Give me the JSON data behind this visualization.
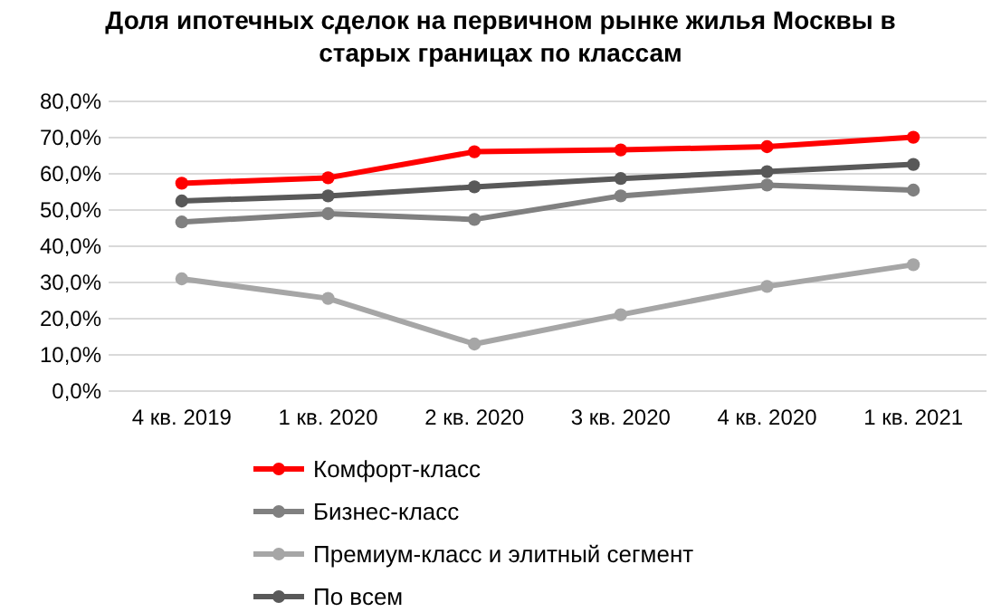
{
  "chart_data": {
    "type": "line",
    "title": "Доля ипотечных сделок на первичном рынке жилья Москвы в старых границах по классам",
    "categories": [
      "4 кв. 2019",
      "1 кв. 2020",
      "2 кв. 2020",
      "3 кв. 2020",
      "4 кв. 2020",
      "1 кв. 2021"
    ],
    "series": [
      {
        "name": "Комфорт-класс",
        "color": "#ff0000",
        "values": [
          57.4,
          58.9,
          66.1,
          66.6,
          67.5,
          70.1
        ]
      },
      {
        "name": "Бизнес-класс",
        "color": "#808080",
        "values": [
          46.7,
          49.0,
          47.4,
          53.9,
          56.9,
          55.5
        ]
      },
      {
        "name": "Премиум-класс и элитный сегмент",
        "color": "#a6a6a6",
        "values": [
          31.0,
          25.6,
          13.0,
          21.1,
          28.9,
          34.9
        ]
      },
      {
        "name": "По всем",
        "color": "#595959",
        "values": [
          52.5,
          53.9,
          56.4,
          58.7,
          60.6,
          62.6
        ]
      }
    ],
    "ylim": [
      0,
      80
    ],
    "yticks": [
      {
        "value": 0,
        "label": "0,0%"
      },
      {
        "value": 10,
        "label": "10,0%"
      },
      {
        "value": 20,
        "label": "20,0%"
      },
      {
        "value": 30,
        "label": "30,0%"
      },
      {
        "value": 40,
        "label": "40,0%"
      },
      {
        "value": 50,
        "label": "50,0%"
      },
      {
        "value": 60,
        "label": "60,0%"
      },
      {
        "value": 70,
        "label": "70,0%"
      },
      {
        "value": 80,
        "label": "80,0%"
      }
    ],
    "grid": "y",
    "legend": "bottom left",
    "marker": "circle",
    "line_style": "solid"
  }
}
